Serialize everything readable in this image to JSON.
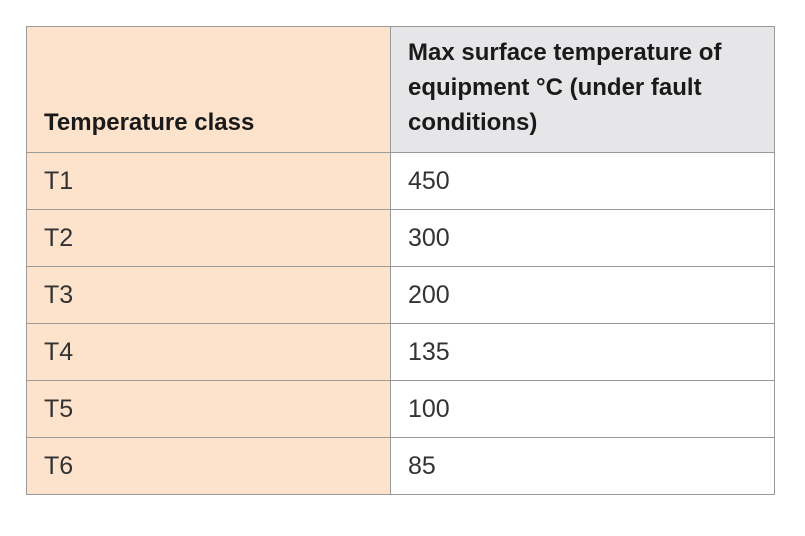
{
  "colors": {
    "class_column": "#fde3cc",
    "header_right": "#e6e6e8",
    "border": "#9a9a9a"
  },
  "headers": [
    "Temperature class",
    "Max surface temperature of equipment °C (under fault conditions)"
  ],
  "rows": [
    {
      "class": "T1",
      "max_temp": "450"
    },
    {
      "class": "T2",
      "max_temp": "300"
    },
    {
      "class": "T3",
      "max_temp": "200"
    },
    {
      "class": "T4",
      "max_temp": "135"
    },
    {
      "class": "T5",
      "max_temp": "100"
    },
    {
      "class": "T6",
      "max_temp": "85"
    }
  ]
}
